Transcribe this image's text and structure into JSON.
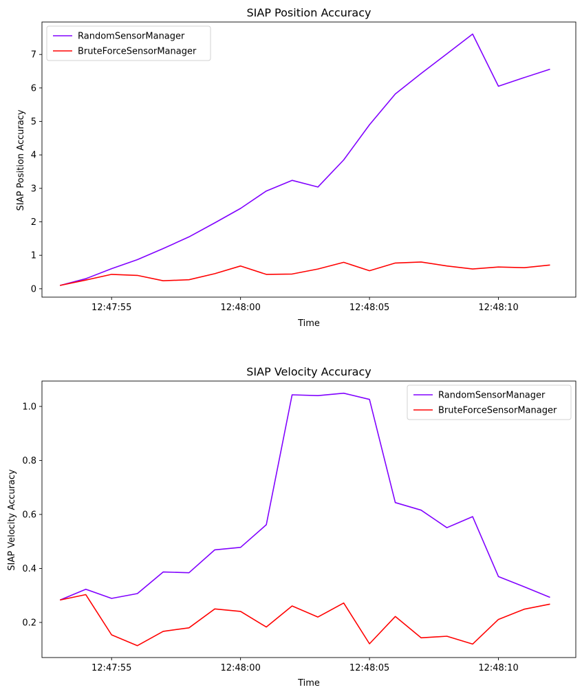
{
  "chart_data": [
    {
      "type": "line",
      "title": "SIAP Position Accuracy",
      "xlabel": "Time",
      "ylabel": "SIAP Position Accuracy",
      "x": [
        "12:47:53",
        "12:47:54",
        "12:47:55",
        "12:47:56",
        "12:47:57",
        "12:47:58",
        "12:47:59",
        "12:48:00",
        "12:48:01",
        "12:48:02",
        "12:48:03",
        "12:48:04",
        "12:48:05",
        "12:48:06",
        "12:48:07",
        "12:48:08",
        "12:48:09",
        "12:48:10",
        "12:48:11",
        "12:48:12"
      ],
      "xlim": [
        "12:47:52.3",
        "12:48:13"
      ],
      "ylim": [
        -0.25,
        7.97
      ],
      "xticks": [
        "12:47:55",
        "12:48:00",
        "12:48:05",
        "12:48:10"
      ],
      "yticks": [
        0,
        1,
        2,
        3,
        4,
        5,
        6,
        7
      ],
      "legend_position": "upper-left",
      "grid": false,
      "series": [
        {
          "name": "RandomSensorManager",
          "color": "#8000ff",
          "values": [
            0.1,
            0.3,
            0.6,
            0.87,
            1.2,
            1.55,
            1.97,
            2.4,
            2.92,
            3.24,
            3.04,
            3.85,
            4.9,
            5.82,
            6.43,
            7.02,
            7.61,
            6.05,
            6.31,
            6.56
          ]
        },
        {
          "name": "BruteForceSensorManager",
          "color": "#ff0000",
          "values": [
            0.1,
            0.26,
            0.43,
            0.4,
            0.24,
            0.27,
            0.45,
            0.68,
            0.43,
            0.44,
            0.59,
            0.79,
            0.54,
            0.77,
            0.8,
            0.68,
            0.59,
            0.65,
            0.63,
            0.71
          ]
        }
      ]
    },
    {
      "type": "line",
      "title": "SIAP Velocity Accuracy",
      "xlabel": "Time",
      "ylabel": "SIAP Velocity Accuracy",
      "x": [
        "12:47:53",
        "12:47:54",
        "12:47:55",
        "12:47:56",
        "12:47:57",
        "12:47:58",
        "12:47:59",
        "12:48:00",
        "12:48:01",
        "12:48:02",
        "12:48:03",
        "12:48:04",
        "12:48:05",
        "12:48:06",
        "12:48:07",
        "12:48:08",
        "12:48:09",
        "12:48:10",
        "12:48:11",
        "12:48:12"
      ],
      "xlim": [
        "12:47:52.3",
        "12:48:13"
      ],
      "ylim": [
        0.07,
        1.094
      ],
      "xticks": [
        "12:47:55",
        "12:48:00",
        "12:48:05",
        "12:48:10"
      ],
      "yticks": [
        0.2,
        0.4,
        0.6,
        0.8,
        1.0
      ],
      "ytick_labels": [
        "0.2",
        "0.4",
        "0.6",
        "0.8",
        "1.0"
      ],
      "legend_position": "upper-right",
      "grid": false,
      "series": [
        {
          "name": "RandomSensorManager",
          "color": "#8000ff",
          "values": [
            0.283,
            0.323,
            0.289,
            0.307,
            0.387,
            0.384,
            0.469,
            0.478,
            0.562,
            1.043,
            1.04,
            1.049,
            1.026,
            0.644,
            0.616,
            0.551,
            0.592,
            0.37,
            0.332,
            0.293
          ]
        },
        {
          "name": "BruteForceSensorManager",
          "color": "#ff0000",
          "values": [
            0.283,
            0.303,
            0.154,
            0.114,
            0.167,
            0.18,
            0.25,
            0.241,
            0.183,
            0.261,
            0.22,
            0.272,
            0.121,
            0.222,
            0.143,
            0.149,
            0.12,
            0.211,
            0.249,
            0.268
          ]
        }
      ]
    }
  ]
}
